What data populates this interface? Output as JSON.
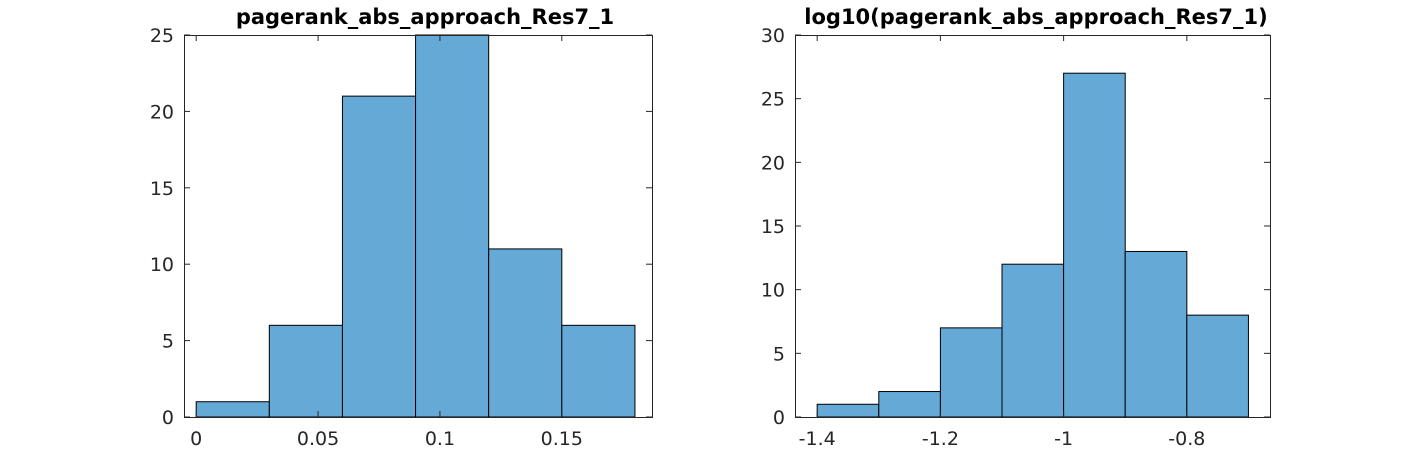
{
  "colors": {
    "bar_fill": "#65a9d7",
    "bar_edge": "#000000",
    "axis": "#262626",
    "background": "#ffffff"
  },
  "chart_data": [
    {
      "type": "bar",
      "subtype": "histogram",
      "title": "pagerank_abs_approach_Res7_1",
      "xlabel": "",
      "ylabel": "",
      "bin_edges": [
        0,
        0.03,
        0.06,
        0.09,
        0.12,
        0.15,
        0.18
      ],
      "values": [
        1,
        6,
        21,
        25,
        11,
        6
      ],
      "xlim": [
        -0.005,
        0.187
      ],
      "ylim": [
        0,
        25
      ],
      "xticks": [
        0,
        0.05,
        0.1,
        0.15
      ],
      "xtick_labels": [
        "0",
        "0.05",
        "0.1",
        "0.15"
      ],
      "yticks": [
        0,
        5,
        10,
        15,
        20,
        25
      ],
      "ytick_labels": [
        "0",
        "5",
        "10",
        "15",
        "20",
        "25"
      ],
      "grid": false,
      "box": true
    },
    {
      "type": "bar",
      "subtype": "histogram",
      "title": "log10(pagerank_abs_approach_Res7_1)",
      "xlabel": "",
      "ylabel": "",
      "bin_edges": [
        -1.4,
        -1.3,
        -1.2,
        -1.1,
        -1.0,
        -0.9,
        -0.8,
        -0.7
      ],
      "values": [
        1,
        2,
        7,
        12,
        27,
        13,
        8
      ],
      "xlim": [
        -1.436,
        -0.665
      ],
      "ylim": [
        0,
        30
      ],
      "xticks": [
        -1.4,
        -1.2,
        -1.0,
        -0.8
      ],
      "xtick_labels": [
        "-1.4",
        "-1.2",
        "-1",
        "-0.8"
      ],
      "yticks": [
        0,
        5,
        10,
        15,
        20,
        25,
        30
      ],
      "ytick_labels": [
        "0",
        "5",
        "10",
        "15",
        "20",
        "25",
        "30"
      ],
      "grid": false,
      "box": true
    }
  ]
}
